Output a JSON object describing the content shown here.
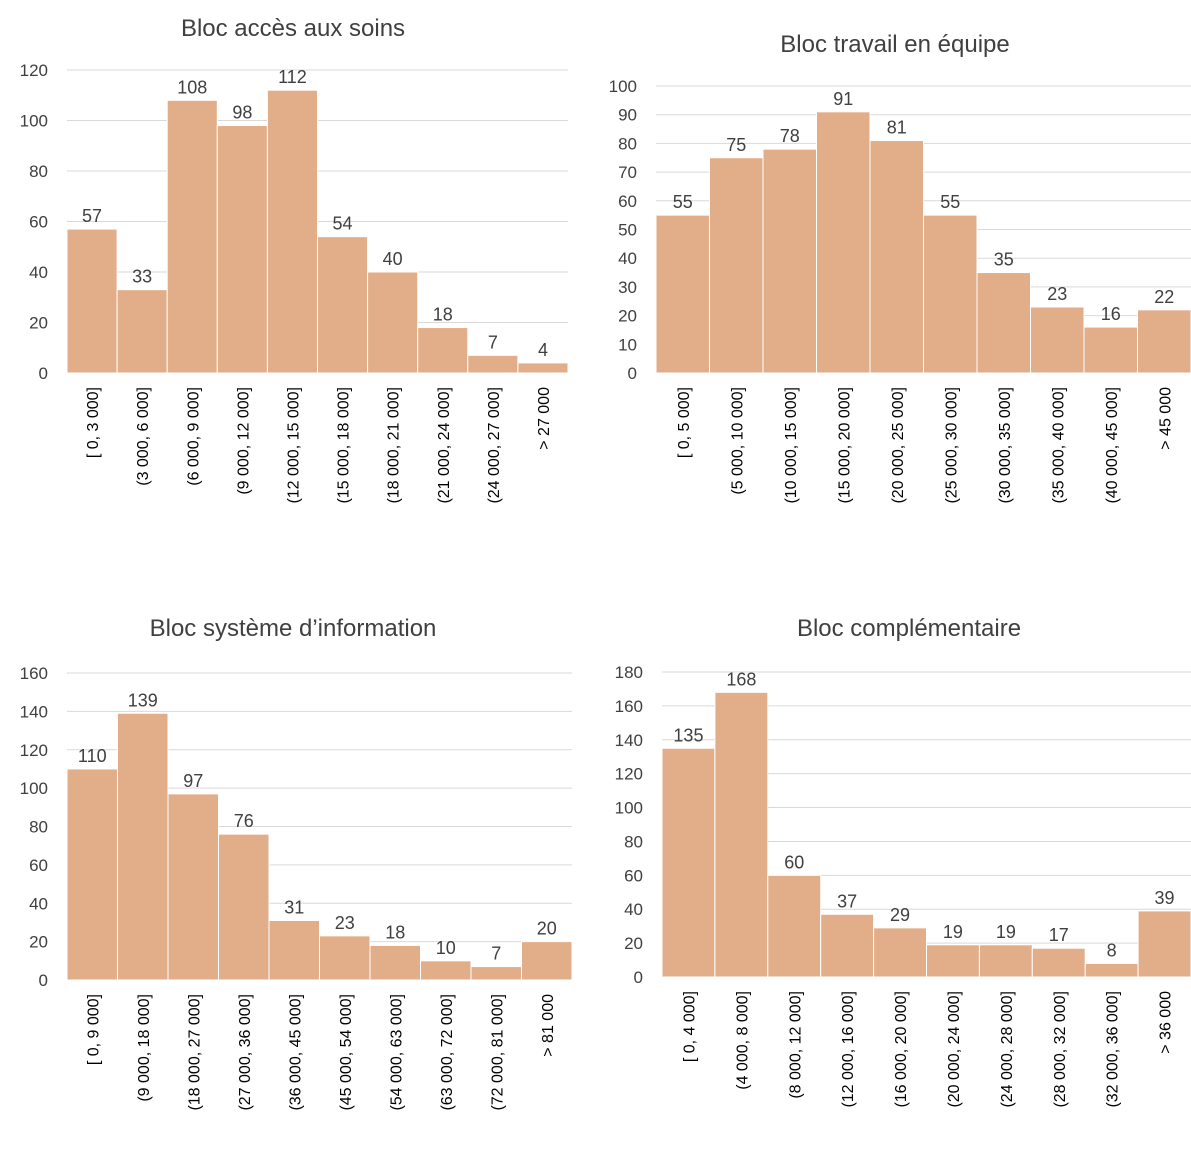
{
  "bar_color": "#e2ae89",
  "chart_data": [
    {
      "type": "bar",
      "title": "Bloc accès aux soins",
      "ylim": [
        0,
        120
      ],
      "yticks": [
        "0",
        "20",
        "40",
        "60",
        "80",
        "100",
        "120"
      ],
      "categories": [
        "[ 0, 3 000]",
        "(3 000, 6 000]",
        "(6 000, 9 000]",
        "(9 000, 12 000]",
        "(12 000, 15 000]",
        "(15 000, 18 000]",
        "(18 000, 21 000]",
        "(21 000, 24 000]",
        "(24 000, 27 000]",
        "> 27 000"
      ],
      "values": [
        57,
        33,
        108,
        98,
        112,
        54,
        40,
        18,
        7,
        4
      ],
      "grid": true,
      "legend": "none"
    },
    {
      "type": "bar",
      "title": "Bloc travail en équipe",
      "ylim": [
        0,
        100
      ],
      "yticks": [
        "0",
        "10",
        "20",
        "30",
        "40",
        "50",
        "60",
        "70",
        "80",
        "90",
        "100"
      ],
      "categories": [
        "[ 0, 5 000]",
        "(5 000, 10 000]",
        "(10 000, 15 000]",
        "(15 000, 20 000]",
        "(20 000, 25 000]",
        "(25 000, 30 000]",
        "(30 000, 35 000]",
        "(35 000, 40 000]",
        "(40 000, 45 000]",
        "> 45 000"
      ],
      "values": [
        55,
        75,
        78,
        91,
        81,
        55,
        35,
        23,
        16,
        22
      ],
      "grid": true,
      "legend": "none"
    },
    {
      "type": "bar",
      "title": "Bloc système d’information",
      "ylim": [
        0,
        160
      ],
      "yticks": [
        "0",
        "20",
        "40",
        "60",
        "80",
        "100",
        "120",
        "140",
        "160"
      ],
      "categories": [
        "[ 0, 9 000]",
        "(9 000, 18 000]",
        "(18 000, 27 000]",
        "(27 000, 36 000]",
        "(36 000, 45 000]",
        "(45 000, 54 000]",
        "(54 000, 63 000]",
        "(63 000, 72 000]",
        "(72 000, 81 000]",
        "> 81 000"
      ],
      "values": [
        110,
        139,
        97,
        76,
        31,
        23,
        18,
        10,
        7,
        20
      ],
      "grid": true,
      "legend": "none"
    },
    {
      "type": "bar",
      "title": "Bloc complémentaire",
      "ylim": [
        0,
        180
      ],
      "yticks": [
        "0",
        "20",
        "40",
        "60",
        "80",
        "100",
        "120",
        "140",
        "160",
        "180"
      ],
      "categories": [
        "[ 0, 4 000]",
        "(4 000, 8 000]",
        "(8 000, 12 000]",
        "(12 000, 16 000]",
        "(16 000, 20 000]",
        "(20 000, 24 000]",
        "(24 000, 28 000]",
        "(28 000, 32 000]",
        "(32 000, 36 000]",
        "> 36 000"
      ],
      "values": [
        135,
        168,
        60,
        37,
        29,
        19,
        19,
        17,
        8,
        39
      ],
      "grid": true,
      "legend": "none"
    }
  ]
}
